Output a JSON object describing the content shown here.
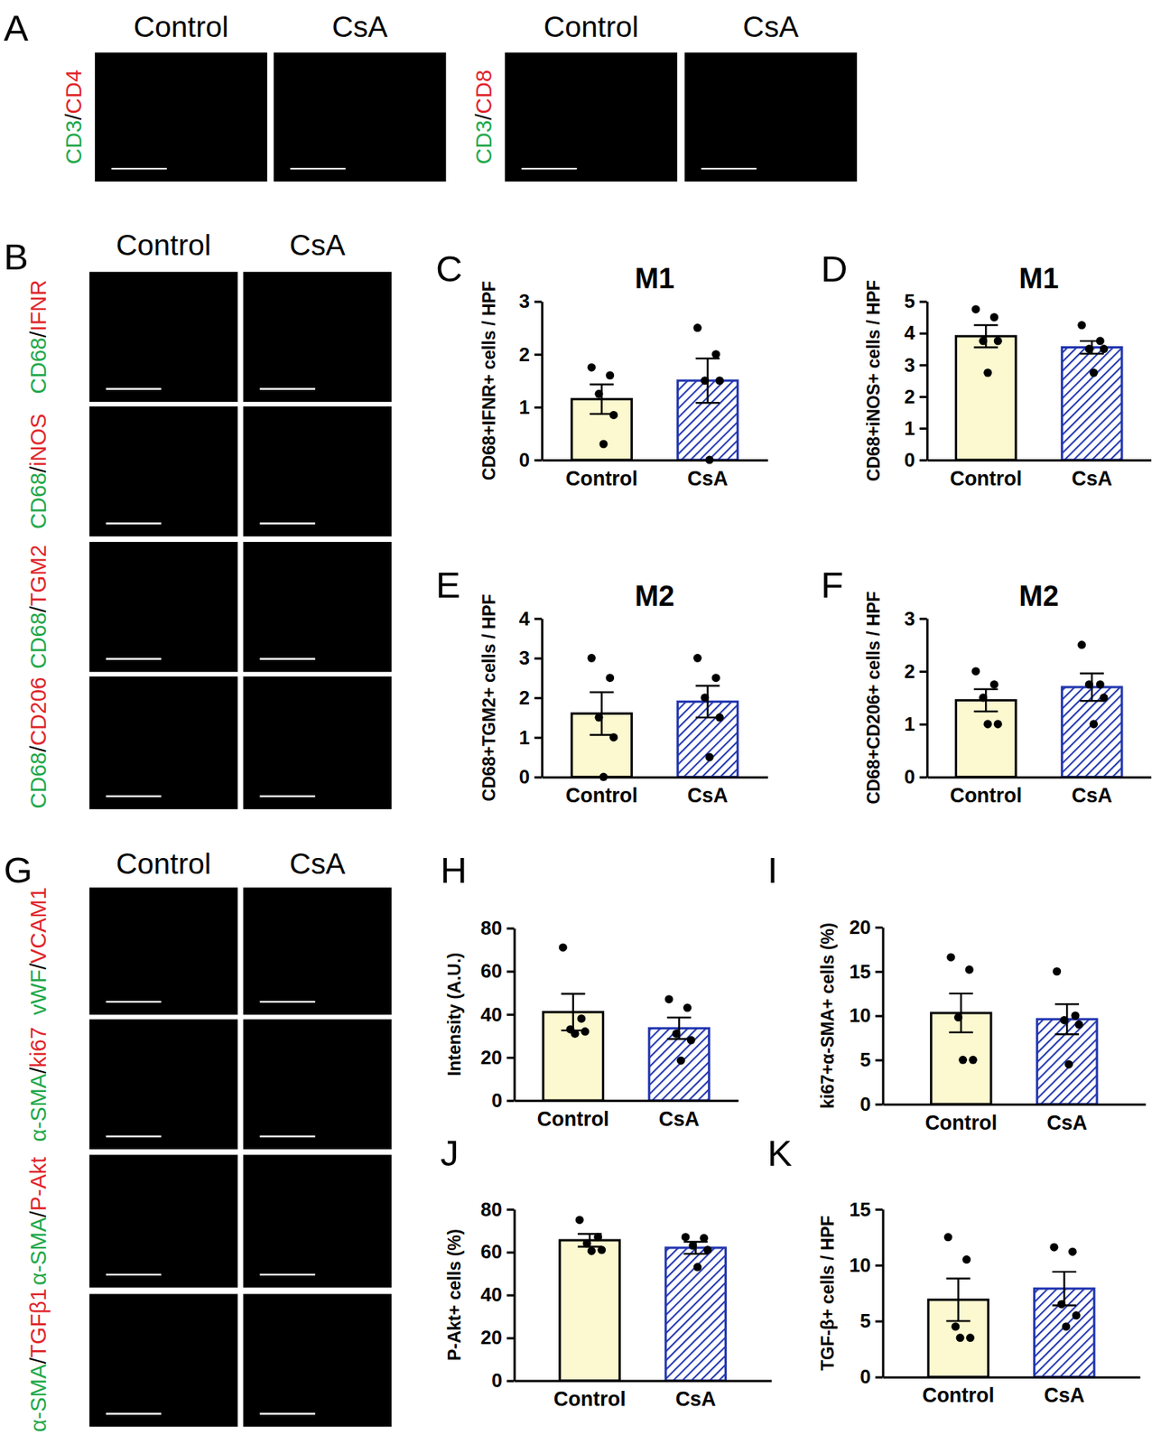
{
  "image_figures": [
    {
      "letter": "A",
      "groups": [
        {
          "columns": [
            "Control",
            "CsA"
          ],
          "rows": [
            [
              {
                "text": "CD3",
                "color": "#22a84a"
              },
              {
                "text": "/",
                "color": "#000000"
              },
              {
                "text": "CD4",
                "color": "#e0262b"
              }
            ]
          ]
        },
        {
          "columns": [
            "Control",
            "CsA"
          ],
          "rows": [
            [
              {
                "text": "CD3",
                "color": "#22a84a"
              },
              {
                "text": "/",
                "color": "#000000"
              },
              {
                "text": "CD8",
                "color": "#e0262b"
              }
            ]
          ]
        }
      ]
    },
    {
      "letter": "B",
      "groups": [
        {
          "columns": [
            "Control",
            "CsA"
          ],
          "rows": [
            [
              {
                "text": "CD68",
                "color": "#22a84a"
              },
              {
                "text": "/",
                "color": "#000000"
              },
              {
                "text": "IFNR",
                "color": "#e0262b"
              }
            ],
            [
              {
                "text": "CD68",
                "color": "#22a84a"
              },
              {
                "text": "/",
                "color": "#000000"
              },
              {
                "text": "iNOS",
                "color": "#e0262b"
              }
            ],
            [
              {
                "text": "CD68",
                "color": "#22a84a"
              },
              {
                "text": "/",
                "color": "#000000"
              },
              {
                "text": "TGM2",
                "color": "#e0262b"
              }
            ],
            [
              {
                "text": "CD68",
                "color": "#22a84a"
              },
              {
                "text": "/",
                "color": "#000000"
              },
              {
                "text": "CD206",
                "color": "#e0262b"
              }
            ]
          ]
        }
      ]
    },
    {
      "letter": "G",
      "groups": [
        {
          "columns": [
            "Control",
            "CsA"
          ],
          "rows": [
            [
              {
                "text": "vWF",
                "color": "#22a84a"
              },
              {
                "text": "/",
                "color": "#000000"
              },
              {
                "text": "VCAM1",
                "color": "#e0262b"
              }
            ],
            [
              {
                "text": "α-SMA",
                "color": "#22a84a"
              },
              {
                "text": "/",
                "color": "#000000"
              },
              {
                "text": "ki67",
                "color": "#e0262b"
              }
            ],
            [
              {
                "text": "α-SMA",
                "color": "#22a84a"
              },
              {
                "text": "/",
                "color": "#000000"
              },
              {
                "text": "P-Akt",
                "color": "#e0262b"
              }
            ],
            [
              {
                "text": "α-SMA",
                "color": "#22a84a"
              },
              {
                "text": "/",
                "color": "#000000"
              },
              {
                "text": "TGFβ1",
                "color": "#e0262b"
              }
            ]
          ]
        }
      ]
    }
  ],
  "chart_data": [
    {
      "type": "bar",
      "panel": "C",
      "title": "M1",
      "y_label": "CD68+IFNR+ cells / HPF",
      "categories": [
        "Control",
        "CsA"
      ],
      "values": [
        1.15,
        1.5
      ],
      "errors": [
        0.28,
        0.42
      ],
      "points": [
        [
          1.75,
          1.6,
          1.25,
          0.85,
          0.3
        ],
        [
          2.5,
          2.0,
          1.5,
          1.5,
          0
        ]
      ],
      "colors": [
        "#fcf9d0",
        "#2236b0"
      ],
      "ylim": [
        0,
        3
      ],
      "yticks": [
        0,
        1,
        2,
        3
      ]
    },
    {
      "type": "bar",
      "panel": "D",
      "title": "M1",
      "y_label": "CD68+iNOS+ cells / HPF",
      "categories": [
        "Control",
        "CsA"
      ],
      "values": [
        3.9,
        3.55
      ],
      "errors": [
        0.35,
        0.2
      ],
      "points": [
        [
          4.75,
          4.5,
          3.75,
          3.75,
          2.75
        ],
        [
          4.25,
          3.75,
          3.5,
          3.5,
          2.75
        ]
      ],
      "colors": [
        "#fcf9d0",
        "#2236b0"
      ],
      "ylim": [
        0,
        5
      ],
      "yticks": [
        0,
        1,
        2,
        3,
        4,
        5
      ]
    },
    {
      "type": "bar",
      "panel": "E",
      "title": "M2",
      "y_label": "CD68+TGM2+ cells / HPF",
      "categories": [
        "Control",
        "CsA"
      ],
      "values": [
        1.6,
        1.9
      ],
      "errors": [
        0.54,
        0.4
      ],
      "points": [
        [
          3.0,
          2.5,
          1.5,
          1.0,
          0
        ],
        [
          3.0,
          2.5,
          2.0,
          1.5,
          0.5
        ]
      ],
      "colors": [
        "#fcf9d0",
        "#2236b0"
      ],
      "ylim": [
        0,
        4
      ],
      "yticks": [
        0,
        1,
        2,
        3,
        4
      ]
    },
    {
      "type": "bar",
      "panel": "F",
      "title": "M2",
      "y_label": "CD68+CD206+ cells / HPF",
      "categories": [
        "Control",
        "CsA"
      ],
      "values": [
        1.45,
        1.7
      ],
      "errors": [
        0.21,
        0.26
      ],
      "points": [
        [
          2.0,
          1.75,
          1.5,
          1.0,
          1.0
        ],
        [
          2.5,
          1.75,
          1.75,
          1.5,
          1.0
        ]
      ],
      "colors": [
        "#fcf9d0",
        "#2236b0"
      ],
      "ylim": [
        0,
        3
      ],
      "yticks": [
        0,
        1,
        2,
        3
      ]
    },
    {
      "type": "bar",
      "panel": "H",
      "y_label": "Intensity (A.U.)",
      "categories": [
        "Control",
        "CsA"
      ],
      "values": [
        41,
        33.5
      ],
      "errors": [
        8.5,
        5
      ],
      "points": [
        [
          71,
          38,
          33,
          32,
          31
        ],
        [
          47,
          43,
          31,
          28,
          18.5
        ]
      ],
      "colors": [
        "#fcf9d0",
        "#2236b0"
      ],
      "ylim": [
        0,
        80
      ],
      "yticks": [
        0,
        20,
        40,
        60,
        80
      ]
    },
    {
      "type": "bar",
      "panel": "I",
      "y_label": "ki67+α-SMA+ cells (%)",
      "categories": [
        "Control",
        "CsA"
      ],
      "values": [
        10.3,
        9.6
      ],
      "errors": [
        2.2,
        1.7
      ],
      "points": [
        [
          16.6,
          15.2,
          9.8,
          5,
          5
        ],
        [
          15,
          10,
          9.5,
          9,
          4.5
        ]
      ],
      "colors": [
        "#fcf9d0",
        "#2236b0"
      ],
      "ylim": [
        0,
        20
      ],
      "yticks": [
        0,
        5,
        10,
        15,
        20
      ]
    },
    {
      "type": "bar",
      "panel": "J",
      "y_label": "P-Akt+ cells (%)",
      "categories": [
        "Control",
        "CsA"
      ],
      "values": [
        65.5,
        62
      ],
      "errors": [
        3,
        2.8
      ],
      "points": [
        [
          75,
          67,
          64,
          61,
          60.5
        ],
        [
          67,
          66.5,
          63,
          61,
          53
        ]
      ],
      "colors": [
        "#fcf9d0",
        "#2236b0"
      ],
      "ylim": [
        0,
        80
      ],
      "yticks": [
        0,
        20,
        40,
        60,
        80
      ]
    },
    {
      "type": "bar",
      "panel": "K",
      "y_label": "TGF-β+ cells / HPF",
      "categories": [
        "Control",
        "CsA"
      ],
      "values": [
        6.9,
        7.9
      ],
      "errors": [
        1.9,
        1.5
      ],
      "points": [
        [
          12.5,
          10.5,
          4.5,
          3.5,
          3.5
        ],
        [
          11.6,
          11.2,
          6.5,
          5.5,
          4.5
        ]
      ],
      "colors": [
        "#fcf9d0",
        "#2236b0"
      ],
      "ylim": [
        0,
        15
      ],
      "yticks": [
        0,
        5,
        10,
        15
      ]
    }
  ]
}
